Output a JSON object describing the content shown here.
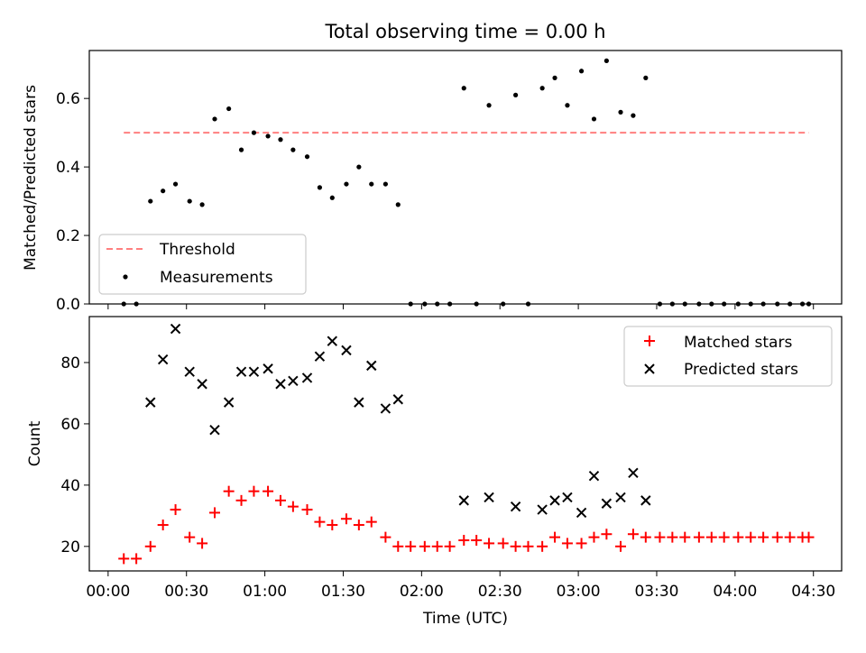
{
  "chart_data": [
    {
      "type": "scatter",
      "title": "Total observing time = 0.00 h",
      "xlabel": "",
      "ylabel": "Matched/Predicted stars",
      "ylim": [
        0,
        0.74
      ],
      "yticks": [
        0.0,
        0.2,
        0.4,
        0.6
      ],
      "ytick_labels": [
        "0.0",
        "0.2",
        "0.4",
        "0.6"
      ],
      "xlim": [
        -0.12,
        4.68
      ],
      "legend_position": "lower-left",
      "threshold": {
        "name": "Threshold",
        "value": 0.5,
        "x_start": 0.1,
        "x_end": 4.47,
        "color": "#ff7f7f"
      },
      "series": [
        {
          "name": "Measurements",
          "color": "#000000",
          "points": [
            {
              "x": 0.1,
              "y": 0.0
            },
            {
              "x": 0.18,
              "y": 0.0
            },
            {
              "x": 0.27,
              "y": 0.3
            },
            {
              "x": 0.35,
              "y": 0.33
            },
            {
              "x": 0.43,
              "y": 0.35
            },
            {
              "x": 0.52,
              "y": 0.3
            },
            {
              "x": 0.6,
              "y": 0.29
            },
            {
              "x": 0.68,
              "y": 0.54
            },
            {
              "x": 0.77,
              "y": 0.57
            },
            {
              "x": 0.85,
              "y": 0.45
            },
            {
              "x": 0.93,
              "y": 0.5
            },
            {
              "x": 1.02,
              "y": 0.49
            },
            {
              "x": 1.1,
              "y": 0.48
            },
            {
              "x": 1.18,
              "y": 0.45
            },
            {
              "x": 1.27,
              "y": 0.43
            },
            {
              "x": 1.35,
              "y": 0.34
            },
            {
              "x": 1.43,
              "y": 0.31
            },
            {
              "x": 1.52,
              "y": 0.35
            },
            {
              "x": 1.6,
              "y": 0.4
            },
            {
              "x": 1.68,
              "y": 0.35
            },
            {
              "x": 1.77,
              "y": 0.35
            },
            {
              "x": 1.85,
              "y": 0.29
            },
            {
              "x": 1.93,
              "y": 0.0
            },
            {
              "x": 2.02,
              "y": 0.0
            },
            {
              "x": 2.1,
              "y": 0.0
            },
            {
              "x": 2.18,
              "y": 0.0
            },
            {
              "x": 2.27,
              "y": 0.63
            },
            {
              "x": 2.35,
              "y": 0.0
            },
            {
              "x": 2.43,
              "y": 0.58
            },
            {
              "x": 2.52,
              "y": 0.0
            },
            {
              "x": 2.6,
              "y": 0.61
            },
            {
              "x": 2.68,
              "y": 0.0
            },
            {
              "x": 2.77,
              "y": 0.63
            },
            {
              "x": 2.85,
              "y": 0.66
            },
            {
              "x": 2.93,
              "y": 0.58
            },
            {
              "x": 3.02,
              "y": 0.68
            },
            {
              "x": 3.1,
              "y": 0.54
            },
            {
              "x": 3.18,
              "y": 0.71
            },
            {
              "x": 3.27,
              "y": 0.56
            },
            {
              "x": 3.35,
              "y": 0.55
            },
            {
              "x": 3.43,
              "y": 0.66
            },
            {
              "x": 3.52,
              "y": 0.0
            },
            {
              "x": 3.6,
              "y": 0.0
            },
            {
              "x": 3.68,
              "y": 0.0
            },
            {
              "x": 3.77,
              "y": 0.0
            },
            {
              "x": 3.85,
              "y": 0.0
            },
            {
              "x": 3.93,
              "y": 0.0
            },
            {
              "x": 4.02,
              "y": 0.0
            },
            {
              "x": 4.1,
              "y": 0.0
            },
            {
              "x": 4.18,
              "y": 0.0
            },
            {
              "x": 4.27,
              "y": 0.0
            },
            {
              "x": 4.35,
              "y": 0.0
            },
            {
              "x": 4.43,
              "y": 0.0
            },
            {
              "x": 4.47,
              "y": 0.0
            }
          ]
        }
      ]
    },
    {
      "type": "scatter",
      "title": "",
      "xlabel": "Time (UTC)",
      "ylabel": "Count",
      "ylim": [
        12,
        95
      ],
      "yticks": [
        20,
        40,
        60,
        80
      ],
      "ytick_labels": [
        "20",
        "40",
        "60",
        "80"
      ],
      "xlim": [
        -0.12,
        4.68
      ],
      "xticks": [
        0,
        0.5,
        1,
        1.5,
        2,
        2.5,
        3,
        3.5,
        4,
        4.5
      ],
      "xtick_labels": [
        "00:00",
        "00:30",
        "01:00",
        "01:30",
        "02:00",
        "02:30",
        "03:00",
        "03:30",
        "04:00",
        "04:30"
      ],
      "legend_position": "upper-right",
      "series": [
        {
          "name": "Matched stars",
          "marker": "plus",
          "color": "#ff0000",
          "points": [
            {
              "x": 0.1,
              "y": 16
            },
            {
              "x": 0.18,
              "y": 16
            },
            {
              "x": 0.27,
              "y": 20
            },
            {
              "x": 0.35,
              "y": 27
            },
            {
              "x": 0.43,
              "y": 32
            },
            {
              "x": 0.52,
              "y": 23
            },
            {
              "x": 0.6,
              "y": 21
            },
            {
              "x": 0.68,
              "y": 31
            },
            {
              "x": 0.77,
              "y": 38
            },
            {
              "x": 0.85,
              "y": 35
            },
            {
              "x": 0.93,
              "y": 38
            },
            {
              "x": 1.02,
              "y": 38
            },
            {
              "x": 1.1,
              "y": 35
            },
            {
              "x": 1.18,
              "y": 33
            },
            {
              "x": 1.27,
              "y": 32
            },
            {
              "x": 1.35,
              "y": 28
            },
            {
              "x": 1.43,
              "y": 27
            },
            {
              "x": 1.52,
              "y": 29
            },
            {
              "x": 1.6,
              "y": 27
            },
            {
              "x": 1.68,
              "y": 28
            },
            {
              "x": 1.77,
              "y": 23
            },
            {
              "x": 1.85,
              "y": 20
            },
            {
              "x": 1.93,
              "y": 20
            },
            {
              "x": 2.02,
              "y": 20
            },
            {
              "x": 2.1,
              "y": 20
            },
            {
              "x": 2.18,
              "y": 20
            },
            {
              "x": 2.27,
              "y": 22
            },
            {
              "x": 2.35,
              "y": 22
            },
            {
              "x": 2.43,
              "y": 21
            },
            {
              "x": 2.52,
              "y": 21
            },
            {
              "x": 2.6,
              "y": 20
            },
            {
              "x": 2.68,
              "y": 20
            },
            {
              "x": 2.77,
              "y": 20
            },
            {
              "x": 2.85,
              "y": 23
            },
            {
              "x": 2.93,
              "y": 21
            },
            {
              "x": 3.02,
              "y": 21
            },
            {
              "x": 3.1,
              "y": 23
            },
            {
              "x": 3.18,
              "y": 24
            },
            {
              "x": 3.27,
              "y": 20
            },
            {
              "x": 3.35,
              "y": 24
            },
            {
              "x": 3.43,
              "y": 23
            },
            {
              "x": 3.52,
              "y": 23
            },
            {
              "x": 3.6,
              "y": 23
            },
            {
              "x": 3.68,
              "y": 23
            },
            {
              "x": 3.77,
              "y": 23
            },
            {
              "x": 3.85,
              "y": 23
            },
            {
              "x": 3.93,
              "y": 23
            },
            {
              "x": 4.02,
              "y": 23
            },
            {
              "x": 4.1,
              "y": 23
            },
            {
              "x": 4.18,
              "y": 23
            },
            {
              "x": 4.27,
              "y": 23
            },
            {
              "x": 4.35,
              "y": 23
            },
            {
              "x": 4.43,
              "y": 23
            },
            {
              "x": 4.47,
              "y": 23
            }
          ]
        },
        {
          "name": "Predicted stars",
          "marker": "x",
          "color": "#000000",
          "points": [
            {
              "x": 0.27,
              "y": 67
            },
            {
              "x": 0.35,
              "y": 81
            },
            {
              "x": 0.43,
              "y": 91
            },
            {
              "x": 0.52,
              "y": 77
            },
            {
              "x": 0.6,
              "y": 73
            },
            {
              "x": 0.68,
              "y": 58
            },
            {
              "x": 0.77,
              "y": 67
            },
            {
              "x": 0.85,
              "y": 77
            },
            {
              "x": 0.93,
              "y": 77
            },
            {
              "x": 1.02,
              "y": 78
            },
            {
              "x": 1.1,
              "y": 73
            },
            {
              "x": 1.18,
              "y": 74
            },
            {
              "x": 1.27,
              "y": 75
            },
            {
              "x": 1.35,
              "y": 82
            },
            {
              "x": 1.43,
              "y": 87
            },
            {
              "x": 1.52,
              "y": 84
            },
            {
              "x": 1.6,
              "y": 67
            },
            {
              "x": 1.68,
              "y": 79
            },
            {
              "x": 1.77,
              "y": 65
            },
            {
              "x": 1.85,
              "y": 68
            },
            {
              "x": 2.27,
              "y": 35
            },
            {
              "x": 2.43,
              "y": 36
            },
            {
              "x": 2.6,
              "y": 33
            },
            {
              "x": 2.77,
              "y": 32
            },
            {
              "x": 2.85,
              "y": 35
            },
            {
              "x": 2.93,
              "y": 36
            },
            {
              "x": 3.02,
              "y": 31
            },
            {
              "x": 3.1,
              "y": 43
            },
            {
              "x": 3.18,
              "y": 34
            },
            {
              "x": 3.27,
              "y": 36
            },
            {
              "x": 3.35,
              "y": 44
            },
            {
              "x": 3.43,
              "y": 35
            }
          ]
        }
      ]
    }
  ]
}
